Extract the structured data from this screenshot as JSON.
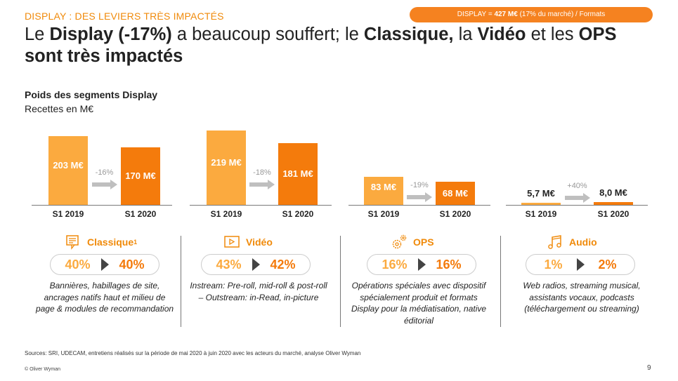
{
  "header": {
    "kicker": "DISPLAY : DES LEVIERS TRÈS IMPACTÉS",
    "pill_prefix": "DISPLAY = ",
    "pill_value": "427 M€",
    "pill_suffix": " (17% du marché) / Formats",
    "title_parts": [
      "Le ",
      "Display (-17%)",
      " a beaucoup souffert; le ",
      "Classique,",
      " la ",
      "Vidéo",
      " et les ",
      "OPS sont très impactés"
    ]
  },
  "chart_heading": {
    "title": "Poids des segments Display",
    "unit": "Recettes en M€"
  },
  "chart_data": [
    {
      "type": "bar",
      "categories": [
        "S1 2019",
        "S1 2020"
      ],
      "values": [
        203,
        170
      ],
      "labels": [
        "203 M€",
        "170 M€"
      ],
      "change": "-16%"
    },
    {
      "type": "bar",
      "categories": [
        "S1 2019",
        "S1 2020"
      ],
      "values": [
        219,
        181
      ],
      "labels": [
        "219 M€",
        "181 M€"
      ],
      "change": "-18%"
    },
    {
      "type": "bar",
      "categories": [
        "S1 2019",
        "S1 2020"
      ],
      "values": [
        83,
        68
      ],
      "labels": [
        "83 M€",
        "68 M€"
      ],
      "change": "-19%"
    },
    {
      "type": "bar",
      "categories": [
        "S1 2019",
        "S1 2020"
      ],
      "values": [
        5.7,
        8.0
      ],
      "labels": [
        "5,7 M€",
        "8,0 M€"
      ],
      "change": "+40%"
    }
  ],
  "segments": [
    {
      "name": "Classique",
      "sup": "1",
      "share_2019": "40%",
      "share_2020": "40%",
      "icon": "document-icon",
      "desc": "Bannières, habillages de site, ancrages natifs haut et milieu de page & modules de recommandation"
    },
    {
      "name": "Vidéo",
      "share_2019": "43%",
      "share_2020": "42%",
      "icon": "play-icon",
      "desc": "Instream: Pre-roll, mid-roll & post-roll – Outstream: in-Read, in-picture"
    },
    {
      "name": "OPS",
      "share_2019": "16%",
      "share_2020": "16%",
      "icon": "gears-icon",
      "desc": "Opérations spéciales avec dispositif spécialement produit et formats Display pour la médiatisation, native éditorial"
    },
    {
      "name": "Audio",
      "share_2019": "1%",
      "share_2020": "2%",
      "icon": "music-note-icon",
      "desc": "Web radios, streaming musical, assistants vocaux, podcasts (téléchargement ou streaming)"
    }
  ],
  "footer": {
    "source": "Sources: SRI, UDECAM, entretiens réalisés sur la période de mai 2020 à juin 2020 avec les acteurs du marché, analyse Oliver Wyman",
    "copyright": "© Oliver Wyman",
    "page": "9"
  },
  "colors": {
    "accent": "#F58220",
    "light_bar": "#FBAA3F",
    "dark_bar": "#F47B0C",
    "arrow": "#BFBFBF"
  }
}
